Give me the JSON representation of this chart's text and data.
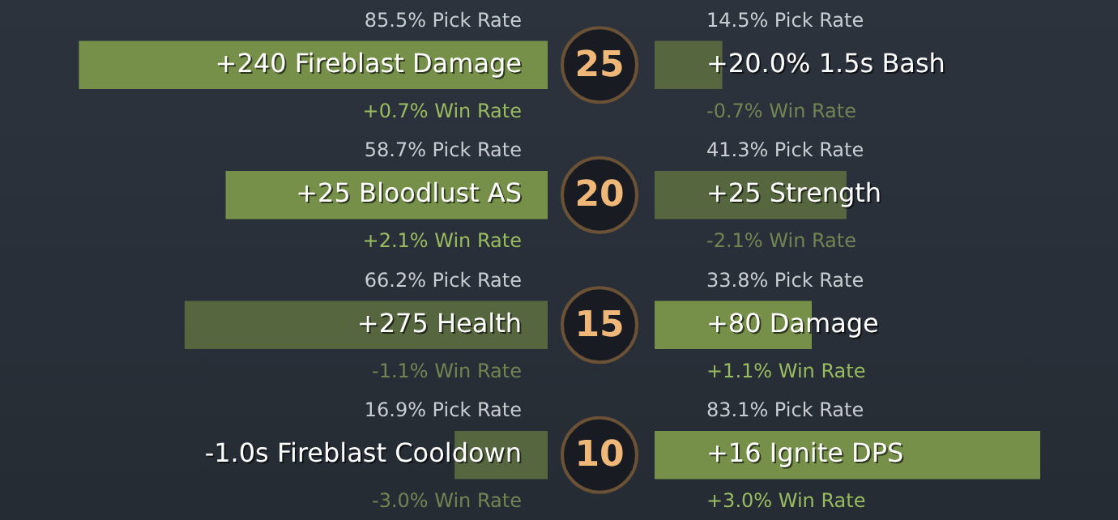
{
  "chart_data": [
    {
      "type": "bar",
      "orientation": "horizontal",
      "categories": [
        "25",
        "20",
        "15",
        "10"
      ],
      "values": [
        85.5,
        58.7,
        66.2,
        16.9
      ],
      "colors": [
        "#76904a",
        "#76904a",
        "#56663f",
        "#56663f"
      ],
      "value_labels": [
        "85.5% Pick Rate",
        "58.7% Pick Rate",
        "66.2% Pick Rate",
        "16.9% Pick Rate"
      ],
      "annotations": [
        "+240 Fireblast Damage",
        "+0.7% Win Rate",
        "+25 Bloodlust AS",
        "+2.1% Win Rate",
        "+275 Health",
        "-1.1% Win Rate",
        "-1.0s Fireblast Cooldown",
        "-3.0% Win Rate"
      ],
      "legend": false,
      "tick_labels": "y"
    },
    {
      "type": "bar",
      "orientation": "horizontal",
      "categories": [
        "25",
        "20",
        "15",
        "10"
      ],
      "values": [
        14.5,
        41.3,
        33.8,
        83.1
      ],
      "colors": [
        "#56663f",
        "#56663f",
        "#76904a",
        "#76904a"
      ],
      "value_labels": [
        "14.5% Pick Rate",
        "41.3% Pick Rate",
        "33.8% Pick Rate",
        "83.1% Pick Rate"
      ],
      "annotations": [
        "+20.0% 1.5s Bash",
        "-0.7% Win Rate",
        "+25 Strength",
        "-2.1% Win Rate",
        "+80 Damage",
        "+1.1% Win Rate",
        "+16 Ignite DPS",
        "+3.0% Win Rate"
      ],
      "legend": false,
      "tick_labels": false
    }
  ]
}
